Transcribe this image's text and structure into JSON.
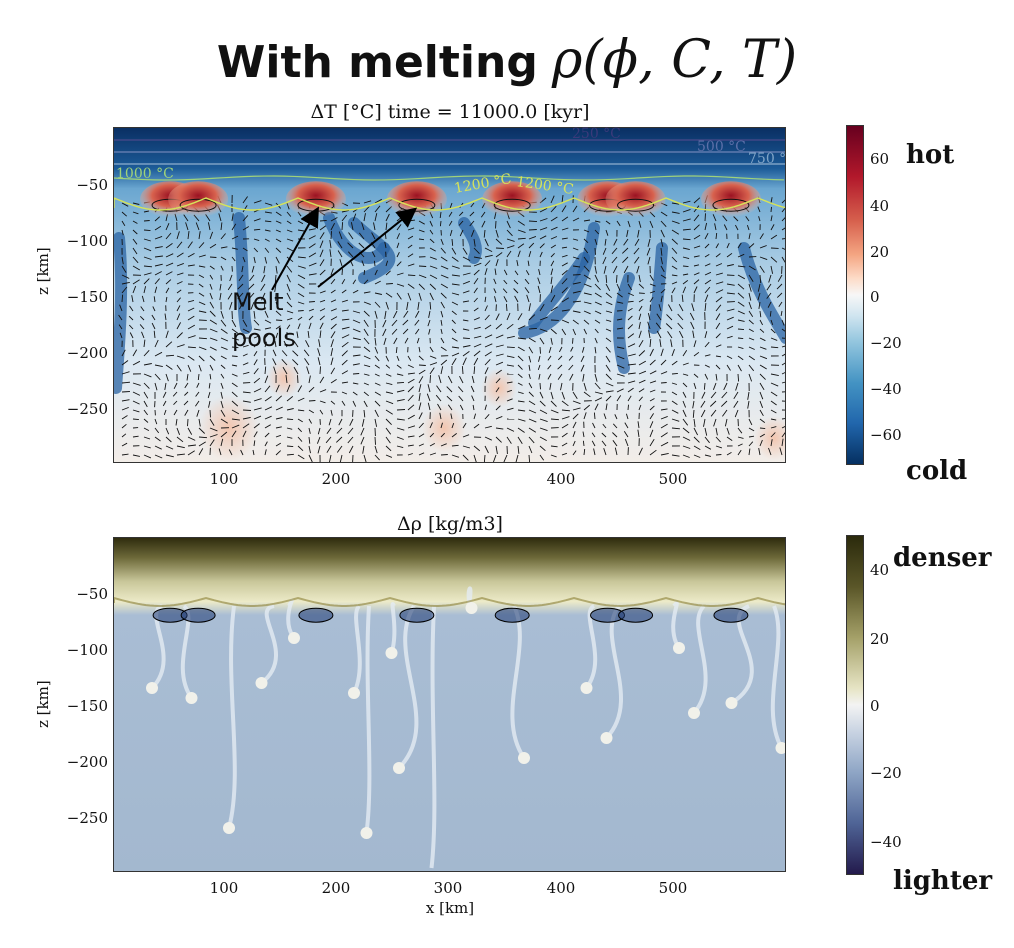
{
  "header": {
    "title_text": "With melting",
    "title_math": "ρ(ϕ, C, T)"
  },
  "top_panel": {
    "title": "ΔT [°C] time = 11000.0 [kyr]",
    "ylabel": "z [km]",
    "yticks": [
      "−50",
      "−100",
      "−150",
      "−200",
      "−250"
    ],
    "xticks": [
      "100",
      "200",
      "300",
      "400",
      "500"
    ],
    "colorbar_ticks": [
      "60",
      "40",
      "20",
      "0",
      "−20",
      "−40",
      "−60"
    ],
    "label_hot": "hot",
    "label_cold": "cold",
    "annotation_line1": "Melt",
    "annotation_line2": "pools",
    "contour_labels": [
      "250 °C",
      "500 °C",
      "750 °",
      "1000 °C",
      "1200 °C",
      "1200 °C"
    ]
  },
  "bottom_panel": {
    "title": "Δρ [kg/m3]",
    "ylabel": "z [km]",
    "xlabel": "x [km]",
    "yticks": [
      "−50",
      "−100",
      "−150",
      "−200",
      "−250"
    ],
    "xticks": [
      "100",
      "200",
      "300",
      "400",
      "500"
    ],
    "colorbar_ticks": [
      "40",
      "20",
      "0",
      "−20",
      "−40"
    ],
    "label_denser": "denser",
    "label_lighter": "lighter"
  },
  "chart_data": [
    {
      "type": "heatmap",
      "title": "ΔT [°C] time = 11000.0 [kyr]",
      "xlabel": "",
      "ylabel": "z [km]",
      "xlim": [
        0,
        600
      ],
      "ylim": [
        -300,
        0
      ],
      "colorbar": {
        "label": "ΔT",
        "range": [
          -75,
          75
        ],
        "colormap": "RdBu_r",
        "ticks": [
          60,
          40,
          20,
          0,
          -20,
          -40,
          -60
        ]
      },
      "velocity_arrows": true,
      "isotherms_C": [
        250,
        500,
        750,
        1000,
        1200
      ],
      "melt_pool_x_km": [
        50,
        75,
        180,
        270,
        355,
        440,
        465,
        550
      ],
      "melt_pool_depth_km": -60
    },
    {
      "type": "heatmap",
      "title": "Δρ [kg/m3]",
      "xlabel": "x [km]",
      "ylabel": "z [km]",
      "xlim": [
        0,
        600
      ],
      "ylim": [
        -300,
        0
      ],
      "colorbar": {
        "label": "Δρ",
        "range": [
          -50,
          50
        ],
        "colormap": "cividis-like",
        "ticks": [
          40,
          20,
          0,
          -20,
          -40
        ]
      },
      "melt_pool_x_km": [
        50,
        75,
        180,
        270,
        355,
        440,
        465,
        550
      ],
      "melt_pool_depth_km": -60
    }
  ],
  "colors": {
    "hot": "#b2182b",
    "warm": "#ef8a62",
    "neutral": "#f7f7f7",
    "cool": "#67a9cf",
    "cold": "#08306b",
    "denser": "#2f2c0e",
    "lighter": "#2a1f4f",
    "background_rho": "#a9bdd4",
    "isotherm": "#d6e35a"
  }
}
